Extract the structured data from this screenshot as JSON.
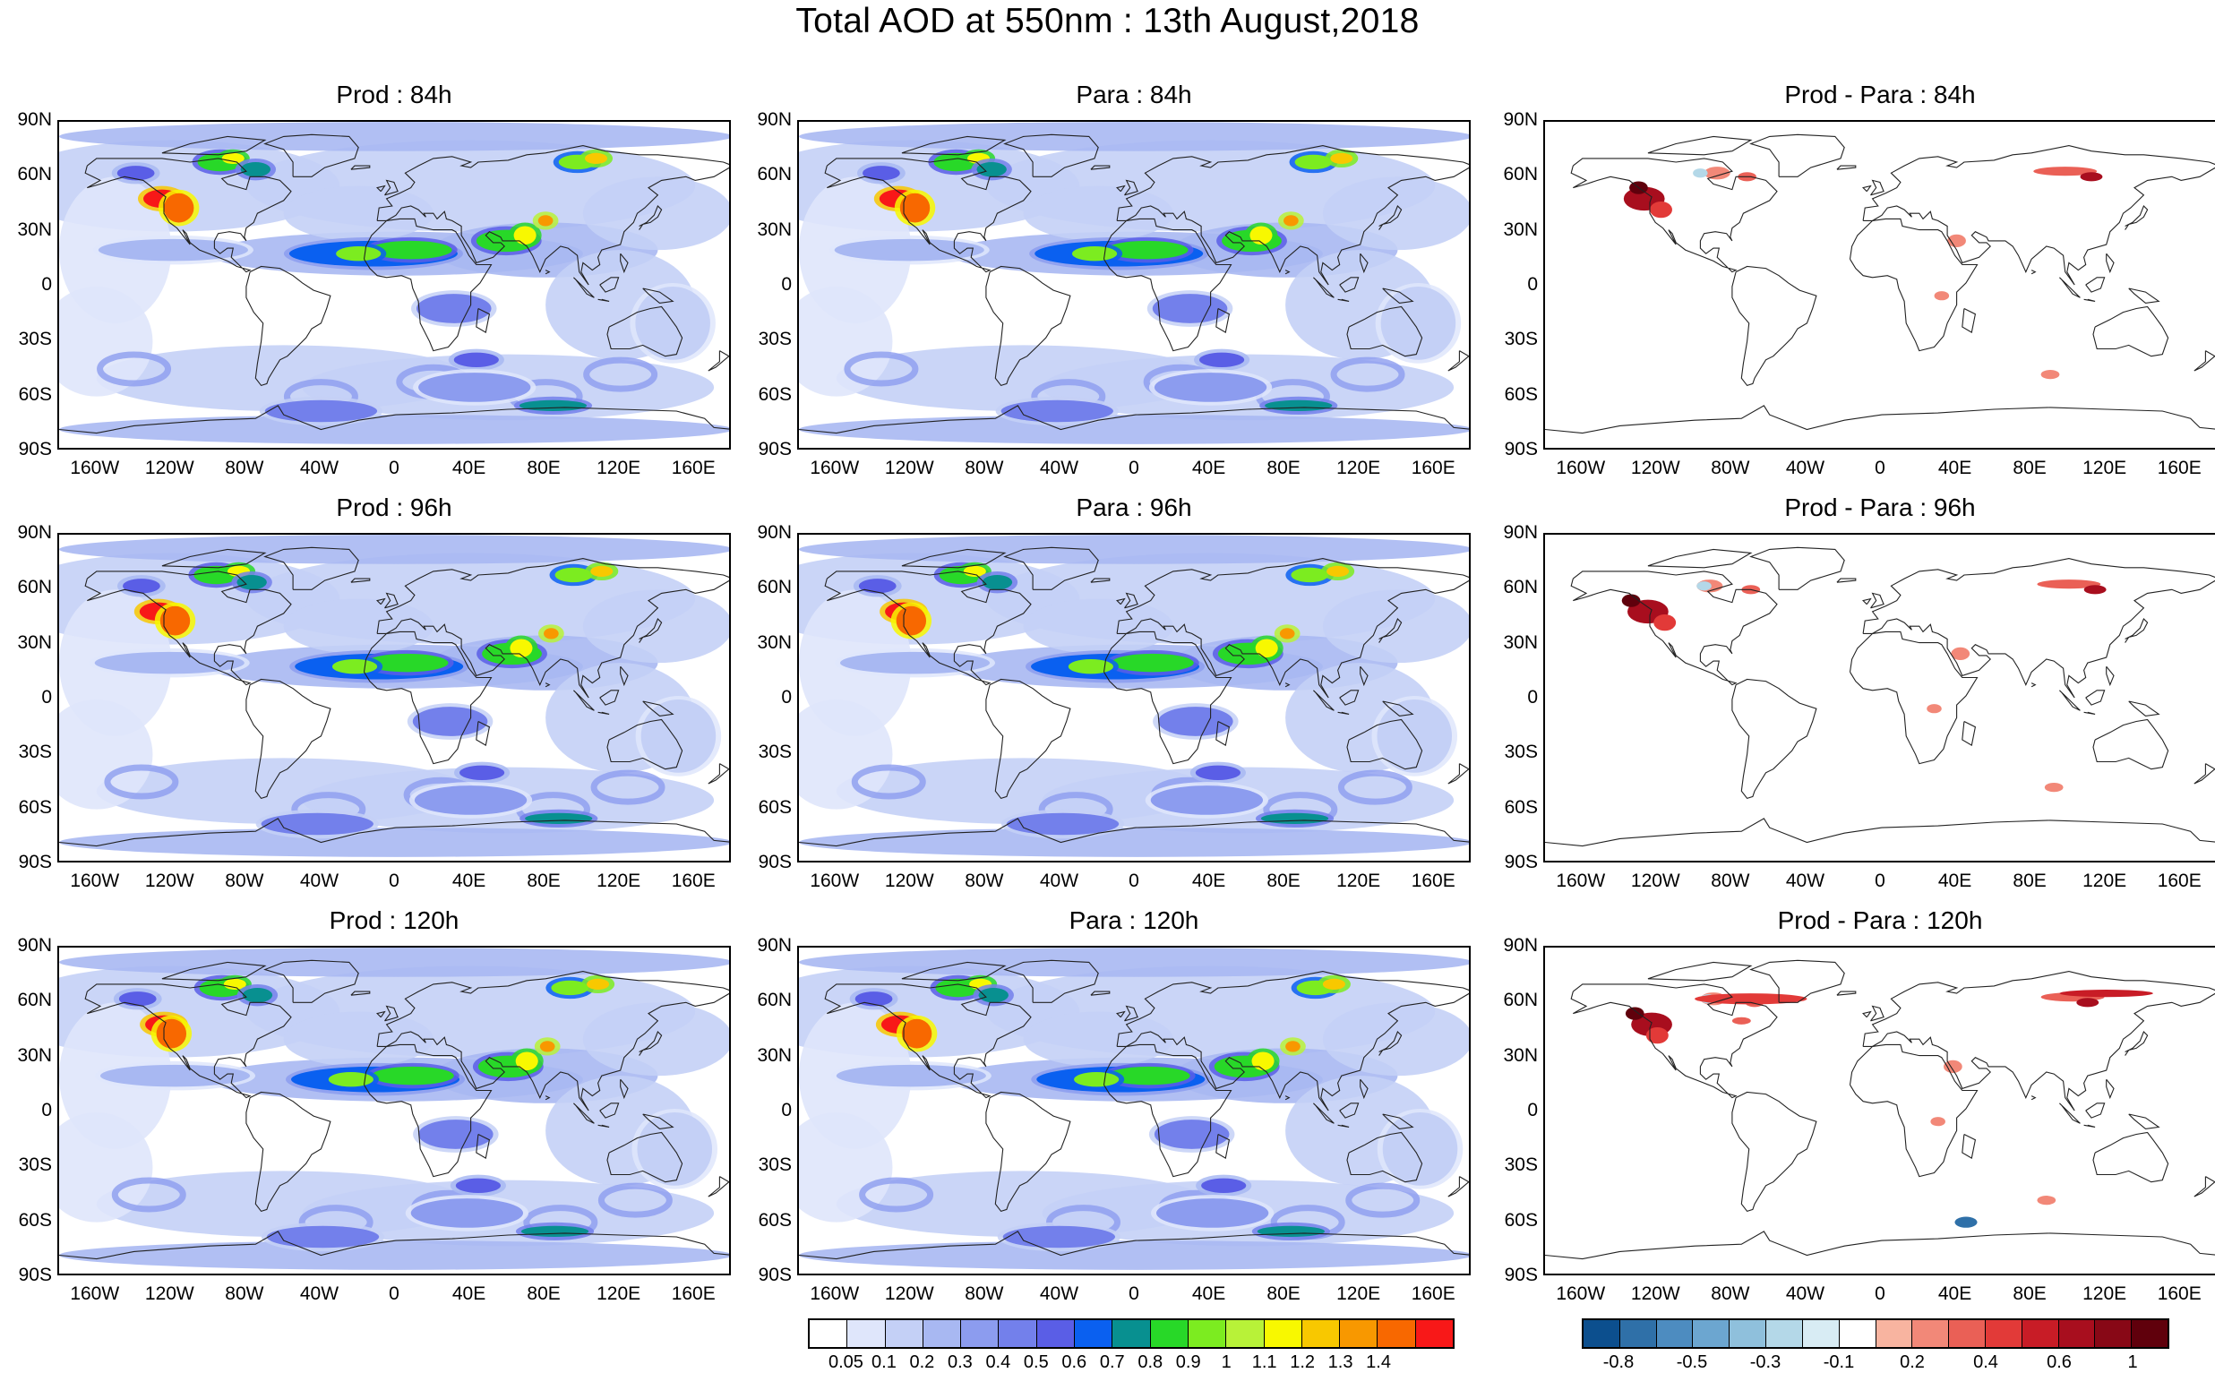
{
  "title": "Total AOD at 550nm : 13th August,2018",
  "panels": [
    {
      "id": "prod-84",
      "title": "Prod : 84h",
      "kind": "aod",
      "row": 0,
      "col": 0
    },
    {
      "id": "para-84",
      "title": "Para : 84h",
      "kind": "aod",
      "row": 0,
      "col": 1
    },
    {
      "id": "diff-84",
      "title": "Prod - Para : 84h",
      "kind": "diff",
      "row": 0,
      "col": 2
    },
    {
      "id": "prod-96",
      "title": "Prod : 96h",
      "kind": "aod",
      "row": 1,
      "col": 0
    },
    {
      "id": "para-96",
      "title": "Para : 96h",
      "kind": "aod",
      "row": 1,
      "col": 1
    },
    {
      "id": "diff-96",
      "title": "Prod - Para : 96h",
      "kind": "diff",
      "row": 1,
      "col": 2
    },
    {
      "id": "prod-120",
      "title": "Prod : 120h",
      "kind": "aod",
      "row": 2,
      "col": 0
    },
    {
      "id": "para-120",
      "title": "Para : 120h",
      "kind": "aod",
      "row": 2,
      "col": 1
    },
    {
      "id": "diff-120",
      "title": "Prod - Para : 120h",
      "kind": "diff",
      "row": 2,
      "col": 2
    }
  ],
  "lat_labels": [
    "90N",
    "60N",
    "30N",
    "0",
    "30S",
    "60S",
    "90S"
  ],
  "lon_labels": [
    "160W",
    "120W",
    "80W",
    "40W",
    "0",
    "40E",
    "80E",
    "120E",
    "160E"
  ],
  "aod_colorbar": {
    "colors": [
      "#ffffff",
      "#dfe6fb",
      "#c4d0f6",
      "#a8b8f2",
      "#8c9cef",
      "#7380eb",
      "#5a5ee6",
      "#0a60f0",
      "#089090",
      "#28d828",
      "#7cec20",
      "#b8f238",
      "#f8f800",
      "#f8c800",
      "#f89800",
      "#f86800",
      "#f81818"
    ],
    "labels": [
      "0.05",
      "0.1",
      "0.2",
      "0.3",
      "0.4",
      "0.5",
      "0.6",
      "0.7",
      "0.8",
      "0.9",
      "1",
      "1.1",
      "1.2",
      "1.3",
      "1.4"
    ]
  },
  "diff_colorbar": {
    "colors": [
      "#0c4f8e",
      "#2f70a8",
      "#4d8cc0",
      "#6ca6d0",
      "#8fc0dc",
      "#b4d8e8",
      "#d8ecf4",
      "#ffffff",
      "#f8b4a0",
      "#f28878",
      "#ea6056",
      "#e23a38",
      "#c81c26",
      "#a80e1e",
      "#880816",
      "#60000c"
    ],
    "labels": [
      "-0.8",
      "-0.5",
      "-0.3",
      "-0.1",
      "0.2",
      "0.4",
      "0.6",
      "1"
    ]
  }
}
